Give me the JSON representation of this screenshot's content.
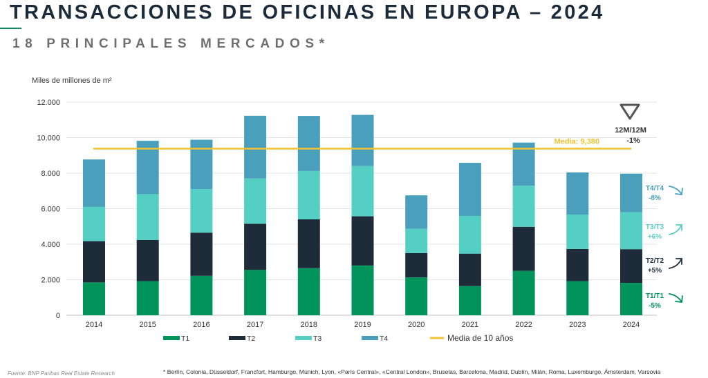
{
  "header": {
    "title": "TRANSACCIONES DE OFICINAS EN EUROPA – 2024",
    "subtitle": "18 PRINCIPALES MERCADOS*"
  },
  "footer": {
    "source": "Fuente: BNP Paribas Real Estate Research",
    "note": "* Berlín, Colonia, Düsseldorf, Francfort, Hamburgo, Múnich,  Lyon, «París Central», «Central London», Bruselas, Barcelona, Madrid, Dublín, Milán, Roma, Luxemburgo, Ámsterdam, Varsovia"
  },
  "chart_data": {
    "type": "bar",
    "stacked": true,
    "ylabel": "Miles de millones de m²",
    "ylim": [
      0,
      12000
    ],
    "yticks": [
      0,
      2000,
      4000,
      6000,
      8000,
      10000,
      12000
    ],
    "ytick_labels": [
      "0",
      "2.000",
      "4.000",
      "6.000",
      "8.000",
      "10.000",
      "12.000"
    ],
    "grid": true,
    "categories": [
      "2014",
      "2015",
      "2016",
      "2017",
      "2018",
      "2019",
      "2020",
      "2021",
      "2022",
      "2023",
      "2024"
    ],
    "series": [
      {
        "name": "T1",
        "color": "#00935c",
        "values": [
          1850,
          1920,
          2220,
          2550,
          2650,
          2800,
          2130,
          1640,
          2500,
          1920,
          1820
        ]
      },
      {
        "name": "T2",
        "color": "#1e2c3a",
        "values": [
          2320,
          2320,
          2430,
          2600,
          2750,
          2770,
          1370,
          1830,
          2480,
          1810,
          1900
        ]
      },
      {
        "name": "T3",
        "color": "#55cfc4",
        "values": [
          1930,
          2580,
          2450,
          2550,
          2720,
          2830,
          1370,
          2120,
          2310,
          1940,
          2080
        ]
      },
      {
        "name": "T4",
        "color": "#4a9fbd",
        "values": [
          2670,
          3000,
          2780,
          3530,
          3100,
          2880,
          1880,
          2990,
          2430,
          2370,
          2170
        ]
      }
    ],
    "average": {
      "label": "Media: 9,380",
      "legend": "Media de 10 años",
      "value": 9380,
      "color": "#f1c232"
    },
    "legend": {
      "position": "bottom"
    },
    "annotations": [
      {
        "text": "12M/12M",
        "text2": "-1%",
        "arrow": "down",
        "color": "#555555"
      },
      {
        "text": "T4/T4",
        "text2": "-8%",
        "arrow": "down-right",
        "color": "#4a9fbd"
      },
      {
        "text": "T3/T3",
        "text2": "+6%",
        "arrow": "up-right",
        "color": "#55cfc4"
      },
      {
        "text": "T2/T2",
        "text2": "+5%",
        "arrow": "up-right",
        "color": "#1e2c3a"
      },
      {
        "text": "T1/T1",
        "text2": "-5%",
        "arrow": "down-right",
        "color": "#00935c"
      }
    ]
  }
}
